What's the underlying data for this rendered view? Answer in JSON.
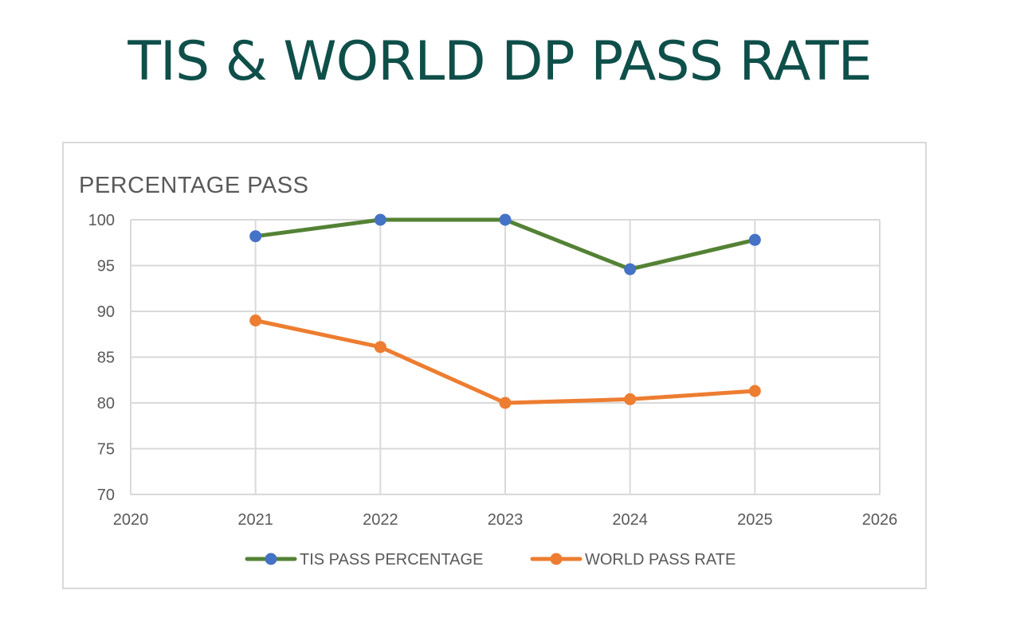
{
  "page": {
    "title": "TIS & WORLD DP PASS RATE"
  },
  "chart_data": {
    "type": "line",
    "title": "PERCENTAGE PASS",
    "xlabel": "",
    "ylabel": "",
    "x": [
      2021,
      2022,
      2023,
      2024,
      2025
    ],
    "xlim": [
      2020,
      2026
    ],
    "ylim": [
      70,
      100
    ],
    "x_ticks": [
      "2020",
      "2021",
      "2022",
      "2023",
      "2024",
      "2025",
      "2026"
    ],
    "y_ticks": [
      "70",
      "75",
      "80",
      "85",
      "90",
      "95",
      "100"
    ],
    "grid": true,
    "legend_position": "bottom",
    "series": [
      {
        "name": "TIS PASS PERCENTAGE",
        "values": [
          98.2,
          100,
          100,
          94.6,
          97.8
        ],
        "line_color": "#548235",
        "marker_color": "#4472c4"
      },
      {
        "name": "WORLD PASS RATE",
        "values": [
          89.0,
          86.1,
          80.0,
          80.4,
          81.3
        ],
        "line_color": "#ed7d31",
        "marker_color": "#ed7d31"
      }
    ]
  }
}
